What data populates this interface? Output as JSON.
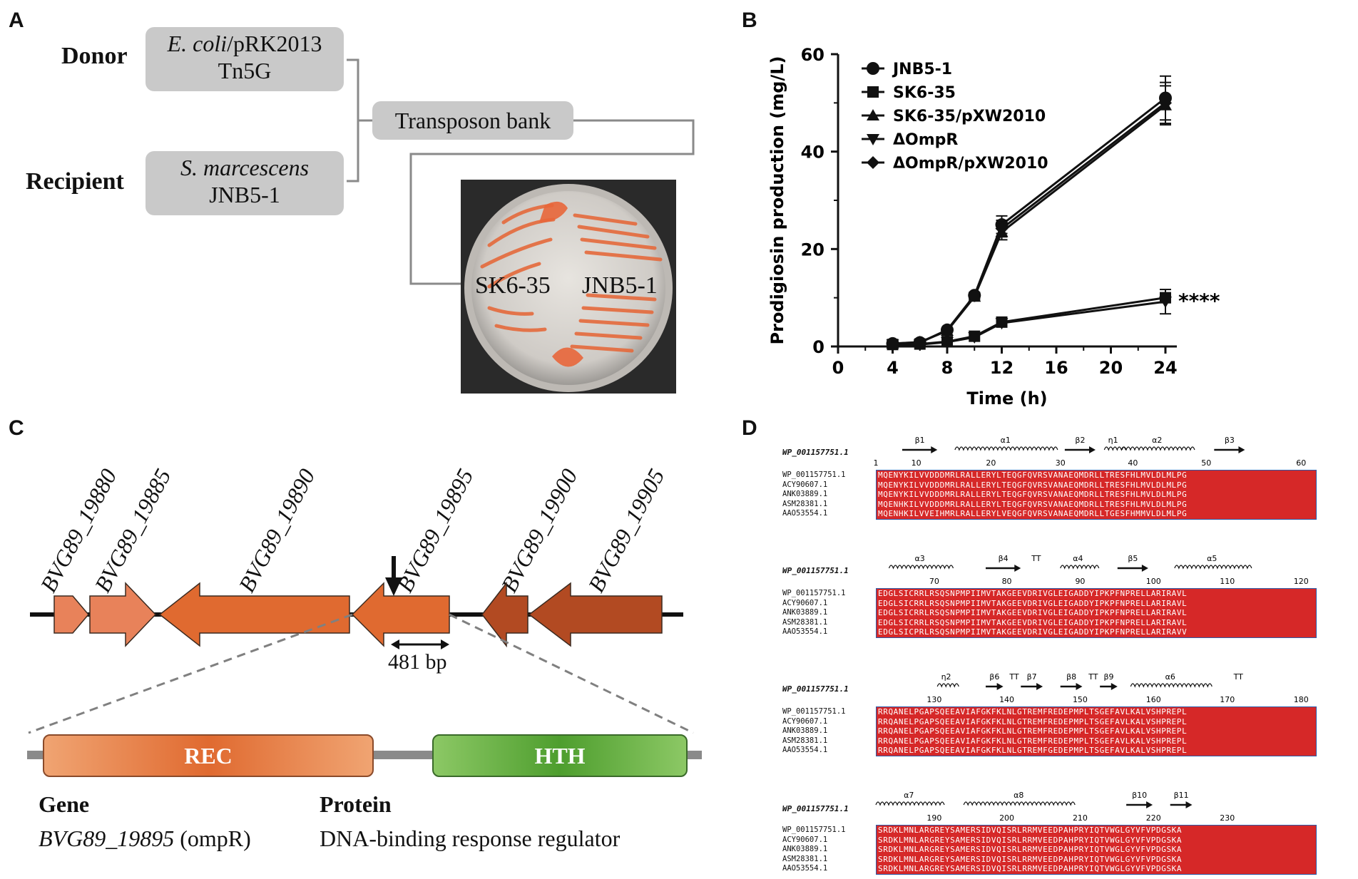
{
  "panels": {
    "a": "A",
    "b": "B",
    "c": "C",
    "d": "D"
  },
  "panel_a": {
    "donor_label": "Donor",
    "recipient_label": "Recipient",
    "donor_line1": "E. coli",
    "donor_line1_suffix": "/pRK2013",
    "donor_line2": "Tn5G",
    "recipient_line1": "S. marcescens",
    "recipient_line2": "JNB5-1",
    "bank_label": "Transposon bank",
    "plate_label_left": "SK6-35",
    "plate_label_right": "JNB5-1"
  },
  "chart_data": {
    "type": "line",
    "xlabel": "Time (h)",
    "ylabel": "Prodigiosin production (mg/L)",
    "xlim": [
      0,
      24
    ],
    "ylim": [
      0,
      60
    ],
    "xticks": [
      "0",
      "4",
      "8",
      "12",
      "16",
      "20",
      "24"
    ],
    "yticks": [
      "0",
      "20",
      "40",
      "60"
    ],
    "x": [
      4,
      6,
      8,
      10,
      12,
      24
    ],
    "series": [
      {
        "name": "JNB5-1",
        "marker": "circle",
        "values": [
          0.6,
          0.8,
          3.4,
          10.5,
          25.0,
          51.0
        ],
        "errors": [
          0.3,
          0.3,
          0.4,
          0.6,
          1.8,
          4.5
        ]
      },
      {
        "name": "SK6-35",
        "marker": "square",
        "values": [
          0.4,
          0.5,
          1.0,
          2.1,
          5.0,
          10.0
        ],
        "errors": [
          0.2,
          0.2,
          0.2,
          0.3,
          0.6,
          1.0
        ]
      },
      {
        "name": "SK6-35/pXW2010",
        "marker": "triangle-up",
        "values": [
          0.6,
          0.9,
          3.2,
          10.2,
          23.5,
          49.5
        ],
        "errors": [
          0.3,
          0.3,
          0.4,
          0.6,
          1.6,
          4.0
        ]
      },
      {
        "name": "ΔOmpR",
        "marker": "triangle-down",
        "values": [
          0.4,
          0.4,
          0.9,
          1.9,
          4.8,
          9.2
        ],
        "errors": [
          0.2,
          0.2,
          0.2,
          0.3,
          0.6,
          2.5
        ]
      },
      {
        "name": "ΔOmpR/pXW2010",
        "marker": "diamond",
        "values": [
          0.6,
          0.8,
          3.3,
          10.4,
          24.2,
          50.0
        ],
        "errors": [
          0.3,
          0.3,
          0.4,
          0.6,
          1.7,
          4.2
        ]
      }
    ],
    "annotation": "****"
  },
  "panel_c": {
    "genes": [
      "BVG89_19880",
      "BVG89_19885",
      "BVG89_19890",
      "BVG89_19895",
      "BVG89_19900",
      "BVG89_19905"
    ],
    "size_label": "481 bp",
    "domain_rec": "REC",
    "domain_hth": "HTH",
    "gene_header": "Gene",
    "gene_value": "BVG89_19895",
    "gene_value_suffix": "(ompR)",
    "protein_header": "Protein",
    "protein_value": "DNA-binding response regulator"
  },
  "panel_d": {
    "reference": "WP_001157751.1",
    "names": [
      "WP_001157751.1",
      "ACY90607.1",
      "ANK03889.1",
      "ASM28381.1",
      "AAO53554.1"
    ],
    "blocks": [
      {
        "ss": [
          "β1",
          "α1",
          "β2",
          "η1",
          "α2",
          "β3"
        ],
        "numbers": [
          "1",
          "10",
          "20",
          "30",
          "40",
          "50",
          "60"
        ],
        "seqs": [
          "MQENYKILVVDDDMRLRALLERYLTEQGFQVRSVANAEQMDRLLTRESFHLMVLDLMLPG",
          "MQENYKILVVDDDMRLRALLERYLTEQGFQVRSVANAEQMDRLLTRESFHLMVLDLMLPG",
          "MQENYKILVVDDDMRLRALLERYLTEQGFQVRSVANAEQMDRLLTRESFHLMVLDLMLPG",
          "MQENHKILVVDDDMRLRALLERYLTEQGFQVRSVANAEQMDRLLTRESFHLMVLDLMLPG",
          "MQENHKILVVEIHMRLRALLERYLVEQGFQVRSVANAEQMDRLLTGESFHMMVLDLMLPG"
        ]
      },
      {
        "ss": [
          "α3",
          "β4",
          "TT",
          "α4",
          "β5",
          "α5"
        ],
        "numbers": [
          "70",
          "80",
          "90",
          "100",
          "110",
          "120"
        ],
        "seqs": [
          "EDGLSICRRLRSQSNPMPIIMVTAKGEEVDRIVGLEIGADDYIPKPFNPRELLARIRAVL",
          "EDGLSICRRLRSQSNPMPIIMVTAKGEEVDRIVGLEIGADDYIPKPFNPRELLARIRAVL",
          "EDGLSICRRLRSQSNPMPIIMVTAKGEEVDRIVGLEIGADDYIPKPFNPRELLARIRAVL",
          "EDGLSICRRLRSQSNPMPIIMVTAKGEEVDRIVGLEIGADDYIPKPFNPRELLARIRAVL",
          "EDGLSICPRLRSQSNPMPIIMVTAKGEEVDRIVGLEIGADDYIPKPFNPRELLARIRAVV"
        ]
      },
      {
        "ss": [
          "η2",
          "β6",
          "TT",
          "β7",
          "β8",
          "TT",
          "β9",
          "α6",
          "TT"
        ],
        "numbers": [
          "130",
          "140",
          "150",
          "160",
          "170",
          "180"
        ],
        "seqs": [
          "RRQANELPGAPSQEEAVIAFGKFKLNLGTREMFREDEPMPLTSGEFAVLKALVSHPREPL",
          "RRQANELPGAPSQEEAVIAFGKFKLNLGTREMFREDEPMPLTSGEFAVLKALVSHPREPL",
          "RRQANELPGAPSQEEAVIAFGKFKLNLGTREMFREDEPMPLTSGEFAVLKALVSHPREPL",
          "RRQANELPGAPSQEEAVIAFGKFKLNLGTREMFREDEPMPLTSGEFAVLKALVSHPREPL",
          "RRQANELPGAPSQEEAVIAFGKFKLNLGTREMFGEDEPMPLTSGEFAVLKALVSHPREPL"
        ]
      },
      {
        "ss": [
          "α7",
          "α8",
          "β10",
          "β11"
        ],
        "numbers": [
          "190",
          "200",
          "210",
          "220",
          "230"
        ],
        "seqs": [
          "SRDKLMNLARGREYSAMERSIDVQISRLRRMVEEDPAHPRYIQTVWGLGYVFVPDGSKA",
          "SRDKLMNLARGREYSAMERSIDVQISRLRRMVEEDPAHPRYIQTVWGLGYVFVPDGSKA",
          "SRDKLMNLARGREYSAMERSIDVQISRLRRMVEEDPAHPRYIQTVWGLGYVFVPDGSKA",
          "SRDKLMNLARGREYSAMERSIDVQISRLRRMVEEDPAHPRYIQTVWGLGYVFVPDGSKA",
          "SRDKLMNLARGREYSAMERSIDVQISRLRRMVEEDPAHPRYIQTVWGLGYVFVPDGSKA"
        ]
      }
    ]
  },
  "colors": {
    "gene_light": "#e8825a",
    "gene_mid": "#e06a30",
    "gene_dark": "#b24a22",
    "rec": "#e8905e",
    "hth": "#6fb84a",
    "aln_red": "#d62828"
  }
}
